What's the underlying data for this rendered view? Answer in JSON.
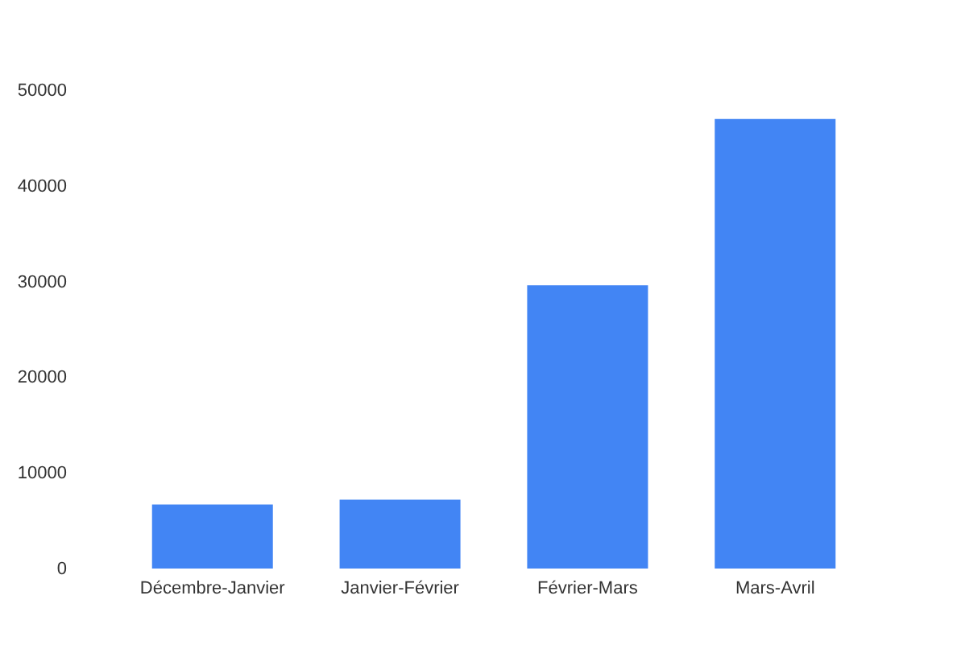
{
  "chart_data": {
    "type": "bar",
    "categories": [
      "Décembre-Janvier",
      "Janvier-Février",
      "Février-Mars",
      "Mars-Avril"
    ],
    "values": [
      6700,
      7200,
      29600,
      47000
    ],
    "color": "#4285f4",
    "ylim": [
      0,
      50000
    ],
    "yticks": [
      0,
      10000,
      20000,
      30000,
      40000,
      50000
    ],
    "grid": false
  }
}
